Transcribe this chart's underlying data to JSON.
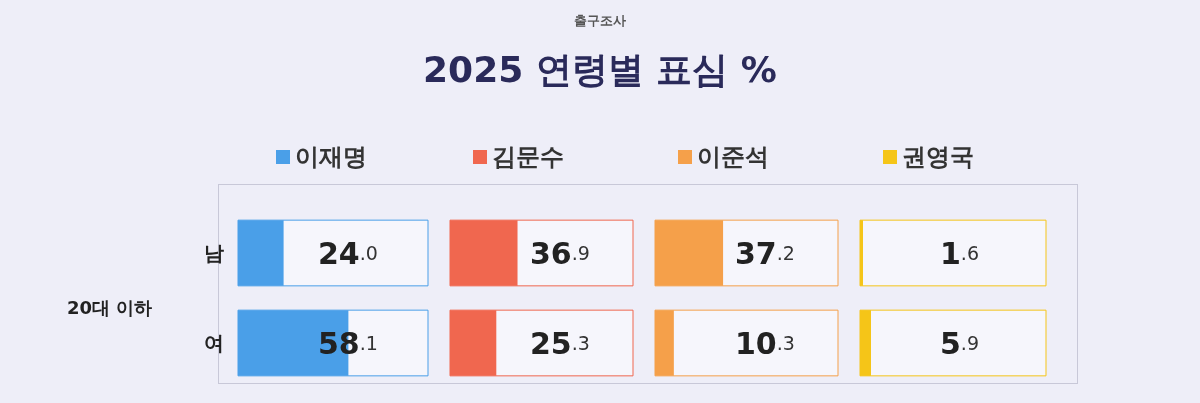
{
  "chart_data": [
    {
      "type": "other",
      "title": "2025 연령별 표심 %",
      "subtitle": "출구조사"
    },
    {
      "type": "bar",
      "ylabel": "20대 이하",
      "orientation": "horizontal",
      "categories": [
        "남",
        "여"
      ],
      "xlim": [
        0,
        100
      ],
      "tick_labels": "y",
      "legend": "top",
      "series": [
        {
          "name": "이재명",
          "color": "#4a9fe8",
          "values": [
            24.0,
            58.1
          ],
          "value_labels": [
            "24.0",
            "58.1"
          ]
        }
      ]
    },
    {
      "type": "bar",
      "orientation": "horizontal",
      "categories": [
        null,
        null
      ],
      "xlim": [
        0,
        100
      ],
      "tick_labels": "y",
      "legend": "top",
      "series": [
        {
          "name": "김문수",
          "color": "#f0674f",
          "values": [
            36.9,
            25.3
          ],
          "value_labels": [
            "36.9",
            "25.3"
          ]
        }
      ]
    },
    {
      "type": "bar",
      "orientation": "horizontal",
      "categories": [
        null,
        null
      ],
      "xlim": [
        0,
        100
      ],
      "tick_labels": "y",
      "legend": "top",
      "series": [
        {
          "name": "이준석",
          "color": "#f5a04a",
          "values": [
            37.2,
            10.3
          ],
          "value_labels": [
            "37.2",
            "10.3"
          ]
        }
      ]
    },
    {
      "type": "bar",
      "orientation": "horizontal",
      "categories": [
        null,
        null
      ],
      "xlim": [
        0,
        100
      ],
      "tick_labels": "y",
      "legend": "top",
      "series": [
        {
          "name": "권영국",
          "color": "#f5c518",
          "values": [
            1.6,
            5.9
          ],
          "value_labels": [
            "1.6",
            "5.9"
          ]
        }
      ]
    }
  ]
}
